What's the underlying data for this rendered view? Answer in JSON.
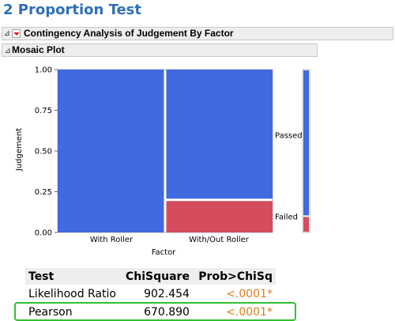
{
  "title": "2 Proportion Test",
  "outline": {
    "report_title": "Contingency Analysis of Judgement By Factor",
    "mosaic_title": "Mosaic Plot"
  },
  "colors": {
    "passed": "#4169e0",
    "failed": "#d44c5e",
    "title": "#2e6fb8",
    "pvalue": "#e07b1a",
    "highlight": "#32c032"
  },
  "chart_data": {
    "type": "mosaic",
    "xlabel": "Factor",
    "ylabel": "Judgement",
    "categories": [
      "With Roller",
      "With/Out Roller"
    ],
    "column_widths": [
      0.5,
      0.5
    ],
    "responses": [
      "Passed",
      "Failed"
    ],
    "proportions": {
      "With Roller": {
        "Passed": 1.0,
        "Failed": 0.0
      },
      "With/Out Roller": {
        "Passed": 0.8,
        "Failed": 0.2
      }
    },
    "overall": {
      "Passed": 0.9,
      "Failed": 0.1
    },
    "y_ticks": [
      "0.00",
      "0.25",
      "0.50",
      "0.75",
      "1.00"
    ],
    "ylim": [
      0,
      1
    ]
  },
  "tests": {
    "columns": [
      "Test",
      "ChiSquare",
      "Prob>ChiSq"
    ],
    "rows": [
      {
        "test": "Likelihood Ratio",
        "chisquare": "902.454",
        "prob": "<.0001*"
      },
      {
        "test": "Pearson",
        "chisquare": "670.890",
        "prob": "<.0001*"
      }
    ]
  }
}
